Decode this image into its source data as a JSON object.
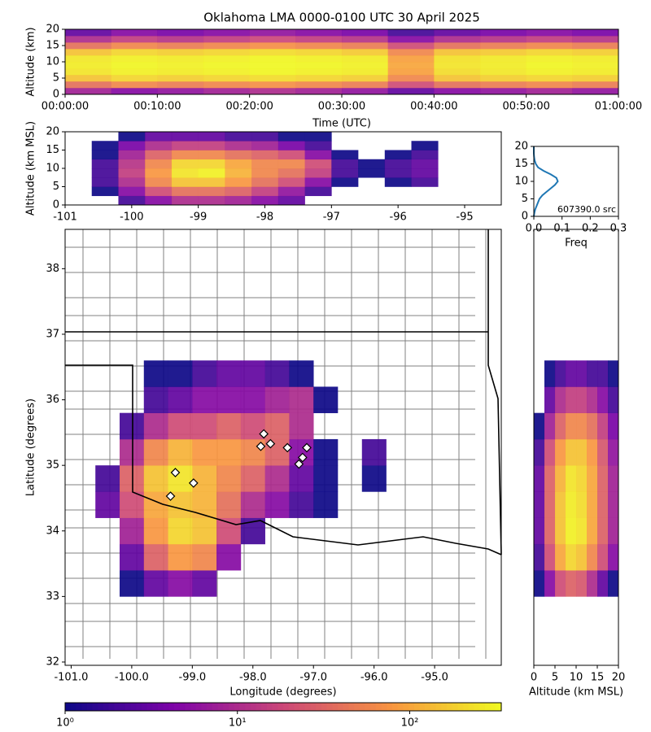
{
  "chart_data": [
    {
      "type": "heatmap",
      "title": "Oklahoma LMA 0000-0100 UTC 30 April 2025",
      "x_label": "Time (UTC)",
      "y_label": "Altitude (km)",
      "xlim": [
        0,
        60
      ],
      "ylim": [
        0,
        20
      ],
      "xticks": [
        {
          "value": 0,
          "label": "00:00:00"
        },
        {
          "value": 10,
          "label": "00:10:00"
        },
        {
          "value": 20,
          "label": "00:20:00"
        },
        {
          "value": 30,
          "label": "00:30:00"
        },
        {
          "value": 40,
          "label": "00:40:00"
        },
        {
          "value": 50,
          "label": "00:50:00"
        },
        {
          "value": 60,
          "label": "01:00:00"
        }
      ],
      "yticks": [
        0,
        5,
        10,
        15,
        20
      ],
      "xbins": [
        0,
        5,
        10,
        15,
        20,
        25,
        30,
        35,
        40,
        45,
        50,
        55,
        60
      ],
      "ybins": [
        0,
        2,
        4,
        6,
        8,
        10,
        12,
        14,
        16,
        18,
        20
      ],
      "values": [
        [
          8,
          5,
          6,
          8,
          10,
          8,
          6,
          3,
          5,
          6,
          8,
          6
        ],
        [
          40,
          60,
          50,
          60,
          70,
          60,
          50,
          20,
          40,
          50,
          60,
          50
        ],
        [
          150,
          200,
          180,
          200,
          220,
          200,
          180,
          60,
          150,
          180,
          200,
          180
        ],
        [
          250,
          300,
          280,
          300,
          320,
          300,
          280,
          90,
          220,
          260,
          300,
          280
        ],
        [
          280,
          320,
          300,
          320,
          330,
          320,
          300,
          100,
          250,
          280,
          320,
          300
        ],
        [
          260,
          300,
          280,
          300,
          320,
          300,
          280,
          90,
          240,
          270,
          300,
          280
        ],
        [
          150,
          200,
          180,
          200,
          220,
          200,
          170,
          60,
          150,
          170,
          200,
          180
        ],
        [
          40,
          60,
          50,
          60,
          70,
          60,
          50,
          20,
          40,
          50,
          60,
          50
        ],
        [
          10,
          15,
          12,
          15,
          18,
          15,
          12,
          5,
          10,
          12,
          15,
          12
        ],
        [
          3,
          5,
          4,
          5,
          6,
          5,
          4,
          2,
          3,
          4,
          5,
          4
        ]
      ]
    },
    {
      "type": "heatmap",
      "y_label": "Altitude (km MSL)",
      "xlim": [
        -101.0,
        -94.45
      ],
      "ylim": [
        0,
        20
      ],
      "xticks": [
        -101,
        -100,
        -99,
        -98,
        -97,
        -96,
        -95
      ],
      "yticks": [
        0,
        5,
        10,
        15,
        20
      ],
      "xbins": [
        -100.6,
        -100.2,
        -99.8,
        -99.4,
        -99.0,
        -98.6,
        -98.2,
        -97.8,
        -97.4,
        -97.0,
        -96.6,
        -96.2,
        -95.8,
        -95.4
      ],
      "ybins": [
        0,
        2.5,
        5,
        7.5,
        10,
        12.5,
        15,
        17.5,
        20
      ],
      "values": [
        [
          0,
          2,
          5,
          10,
          10,
          8,
          5,
          3,
          0,
          0,
          0,
          0,
          0
        ],
        [
          1,
          5,
          20,
          40,
          40,
          30,
          15,
          6,
          2,
          0,
          0,
          0,
          0
        ],
        [
          2,
          10,
          60,
          150,
          150,
          80,
          40,
          20,
          5,
          1,
          0,
          1,
          2
        ],
        [
          2,
          15,
          80,
          250,
          300,
          120,
          60,
          40,
          15,
          2,
          1,
          2,
          3
        ],
        [
          2,
          12,
          60,
          200,
          200,
          100,
          60,
          60,
          20,
          2,
          1,
          2,
          3
        ],
        [
          1,
          8,
          30,
          60,
          60,
          40,
          30,
          20,
          5,
          1,
          0,
          1,
          2
        ],
        [
          1,
          4,
          10,
          15,
          15,
          10,
          8,
          4,
          2,
          0,
          0,
          0,
          1
        ],
        [
          0,
          1,
          3,
          3,
          3,
          2,
          2,
          1,
          1,
          0,
          0,
          0,
          0
        ]
      ]
    },
    {
      "type": "line",
      "x_label": "Freq",
      "annotation": "607390.0 src",
      "color": "#1f77b4",
      "xlim": [
        0,
        0.3
      ],
      "ylim": [
        0,
        20
      ],
      "xticks": [
        {
          "value": 0,
          "label": "0.0"
        },
        0.1,
        0.2,
        0.3
      ],
      "yticks": [
        0,
        5,
        10,
        15,
        20
      ],
      "y": [
        0,
        1,
        2,
        3,
        4,
        5,
        6,
        7,
        8,
        9,
        10,
        11,
        12,
        13,
        14,
        15,
        16,
        17,
        18,
        19,
        20
      ],
      "values": [
        0,
        0.002,
        0.005,
        0.01,
        0.015,
        0.02,
        0.03,
        0.045,
        0.06,
        0.075,
        0.085,
        0.08,
        0.06,
        0.035,
        0.015,
        0.007,
        0.003,
        0.001,
        0,
        0,
        0
      ]
    },
    {
      "type": "heatmap",
      "x_label": "Longitude (degrees)",
      "y_label": "Latitude (degrees)",
      "xlim": [
        -101.1,
        -93.9
      ],
      "ylim": [
        31.95,
        38.6
      ],
      "xticks": [
        {
          "value": -101,
          "label": "-101.0"
        },
        {
          "value": -100,
          "label": "-100.0"
        },
        {
          "value": -99,
          "label": "-99.0"
        },
        {
          "value": -98,
          "label": "-98.0"
        },
        {
          "value": -97,
          "label": "-97.0"
        },
        {
          "value": -96,
          "label": "-96.0"
        },
        {
          "value": -95,
          "label": "-95.0"
        }
      ],
      "yticks": [
        32,
        33,
        34,
        35,
        36,
        37,
        38
      ],
      "xbins": [
        -100.6,
        -100.2,
        -99.8,
        -99.4,
        -99.0,
        -98.6,
        -98.2,
        -97.8,
        -97.4,
        -97.0,
        -96.6,
        -96.2,
        -95.8,
        -95.4
      ],
      "ybins": [
        33.0,
        33.4,
        33.8,
        34.2,
        34.6,
        35.0,
        35.4,
        35.8,
        36.2,
        36.6
      ],
      "values": [
        [
          0,
          1,
          3,
          5,
          3,
          0,
          0,
          0,
          0,
          0,
          0,
          0,
          0
        ],
        [
          0,
          3,
          30,
          80,
          60,
          5,
          0,
          0,
          0,
          0,
          0,
          0,
          0
        ],
        [
          0,
          8,
          80,
          200,
          150,
          20,
          2,
          0,
          0,
          0,
          0,
          0,
          0
        ],
        [
          3,
          20,
          100,
          150,
          120,
          40,
          10,
          5,
          2,
          1,
          0,
          0,
          0
        ],
        [
          2,
          30,
          150,
          250,
          120,
          60,
          30,
          10,
          3,
          1,
          0,
          1,
          0
        ],
        [
          0,
          10,
          60,
          120,
          80,
          80,
          60,
          30,
          5,
          1,
          0,
          2,
          0
        ],
        [
          0,
          2,
          10,
          20,
          20,
          30,
          20,
          30,
          10,
          0,
          0,
          0,
          0
        ],
        [
          0,
          0,
          2,
          3,
          5,
          5,
          5,
          8,
          10,
          1,
          0,
          0,
          0
        ],
        [
          0,
          0,
          1,
          1,
          2,
          3,
          3,
          2,
          1,
          0,
          0,
          0,
          0
        ]
      ],
      "stations": {
        "x": [
          -99.36,
          -99.28,
          -98.98,
          -97.87,
          -97.82,
          -97.71,
          -97.43,
          -97.24,
          -97.11,
          -97.18
        ],
        "y": [
          34.53,
          34.89,
          34.73,
          35.29,
          35.48,
          35.33,
          35.27,
          35.02,
          35.27,
          35.12
        ]
      }
    },
    {
      "type": "heatmap",
      "x_label": "Altitude (km MSL)",
      "xlim": [
        0,
        20
      ],
      "ylim": [
        31.95,
        38.6
      ],
      "xticks": [
        0,
        5,
        10,
        15,
        20
      ],
      "xbins": [
        0,
        2.5,
        5,
        7.5,
        10,
        12.5,
        15,
        17.5,
        20
      ],
      "ybins": [
        33.0,
        33.4,
        33.8,
        34.2,
        34.6,
        35.0,
        35.4,
        35.8,
        36.2,
        36.6
      ],
      "values": [
        [
          1,
          5,
          20,
          30,
          25,
          10,
          3,
          1
        ],
        [
          2,
          20,
          100,
          200,
          150,
          60,
          20,
          5
        ],
        [
          3,
          30,
          150,
          300,
          250,
          100,
          30,
          8
        ],
        [
          3,
          30,
          150,
          280,
          220,
          100,
          30,
          8
        ],
        [
          3,
          30,
          120,
          250,
          200,
          100,
          30,
          8
        ],
        [
          2,
          20,
          80,
          150,
          150,
          80,
          25,
          6
        ],
        [
          1,
          8,
          30,
          60,
          60,
          40,
          15,
          4
        ],
        [
          0,
          3,
          10,
          15,
          15,
          10,
          5,
          2
        ],
        [
          0,
          1,
          2,
          3,
          3,
          2,
          2,
          1
        ]
      ]
    },
    {
      "type": "colorbar",
      "log": true,
      "colormap": [
        "#0d0887",
        "#7e03a8",
        "#cc4778",
        "#f89540",
        "#f0f921"
      ],
      "xlim": [
        1,
        340
      ],
      "xticks": [
        {
          "value": 1,
          "label": "10⁰"
        },
        {
          "value": 10,
          "label": "10¹"
        },
        {
          "value": 100,
          "label": "10²"
        }
      ]
    }
  ]
}
